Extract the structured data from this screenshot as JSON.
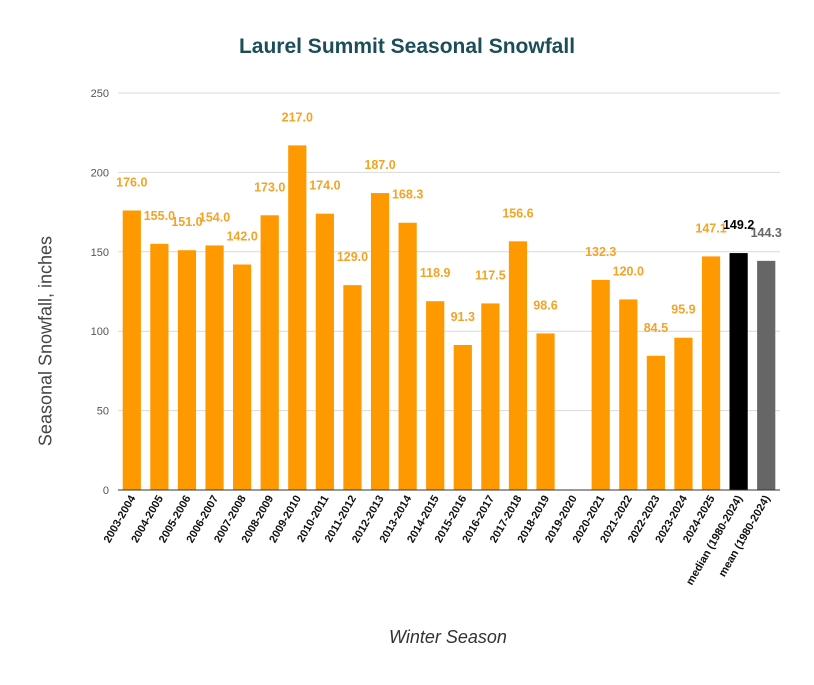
{
  "chart_data": {
    "type": "bar",
    "title": "Laurel Summit Seasonal Snowfall",
    "xlabel": "Winter Season",
    "ylabel": "Seasonal Snowfall, inches",
    "ylim": [
      0,
      250
    ],
    "yticks": [
      0,
      50,
      100,
      150,
      200,
      250
    ],
    "grid": true,
    "legend": "none",
    "categories": [
      "2003-2004",
      "2004-2005",
      "2005-2006",
      "2006-2007",
      "2007-2008",
      "2008-2009",
      "2009-2010",
      "2010-2011",
      "2011-2012",
      "2012-2013",
      "2013-2014",
      "2014-2015",
      "2015-2016",
      "2016-2017",
      "2017-2018",
      "2018-2019",
      "2019-2020",
      "2020-2021",
      "2021-2022",
      "2022-2023",
      "2023-2024",
      "2024-2025",
      "median (1980-2024)",
      "mean (1980-2024)"
    ],
    "values": [
      176.0,
      155.0,
      151.0,
      154.0,
      142.0,
      173.0,
      217.0,
      174.0,
      129.0,
      187.0,
      168.3,
      118.9,
      91.3,
      117.5,
      156.6,
      98.6,
      null,
      132.3,
      120.0,
      84.5,
      95.9,
      147.1,
      149.2,
      144.3
    ],
    "labels": [
      "176.0",
      "155.0",
      "151.0",
      "154.0",
      "142.0",
      "173.0",
      "217.0",
      "174.0",
      "129.0",
      "187.0",
      "168.3",
      "118.9",
      "91.3",
      "117.5",
      "156.6",
      "98.6",
      "",
      "132.3",
      "120.0",
      "84.5",
      "95.9",
      "147.1",
      "149.2",
      "144.3"
    ],
    "colors": [
      "#ff9900",
      "#ff9900",
      "#ff9900",
      "#ff9900",
      "#ff9900",
      "#ff9900",
      "#ff9900",
      "#ff9900",
      "#ff9900",
      "#ff9900",
      "#ff9900",
      "#ff9900",
      "#ff9900",
      "#ff9900",
      "#ff9900",
      "#ff9900",
      "#ff9900",
      "#ff9900",
      "#ff9900",
      "#ff9900",
      "#ff9900",
      "#ff9900",
      "#000000",
      "#666666"
    ],
    "label_colors": [
      "#f4a324",
      "#f4a324",
      "#f4a324",
      "#f4a324",
      "#f4a324",
      "#f4a324",
      "#f4a324",
      "#f4a324",
      "#f4a324",
      "#f4a324",
      "#f4a324",
      "#f4a324",
      "#f4a324",
      "#f4a324",
      "#f4a324",
      "#f4a324",
      "#f4a324",
      "#f4a324",
      "#f4a324",
      "#f4a324",
      "#f4a324",
      "#f4a324",
      "#000000",
      "#666666"
    ]
  }
}
